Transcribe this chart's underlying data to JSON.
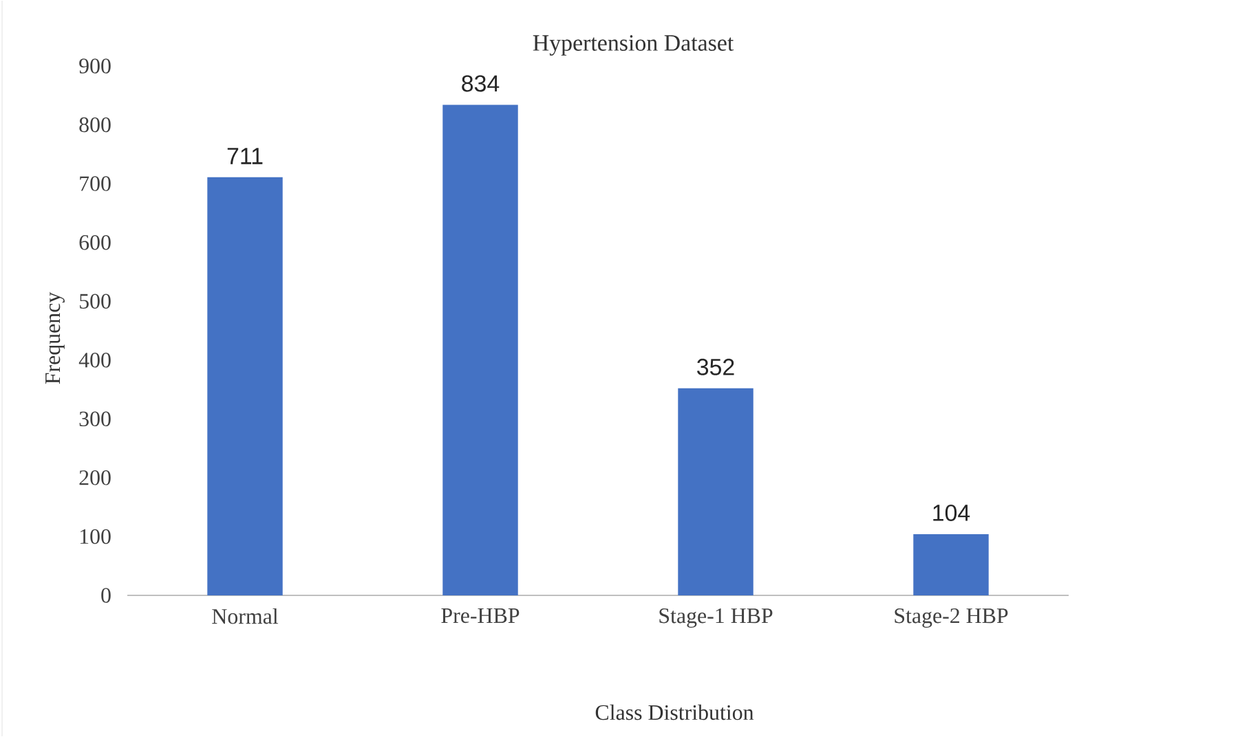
{
  "chart_data": {
    "type": "bar",
    "title": "Hypertension Dataset",
    "xlabel": "Class Distribution",
    "ylabel": "Frequency",
    "categories": [
      "Normal",
      "Pre-HBP",
      "Stage-1 HBP",
      "Stage-2 HBP"
    ],
    "values": [
      711,
      834,
      352,
      104
    ],
    "color": "#4472c4",
    "data_labels": true,
    "ylim": [
      0,
      900
    ],
    "yticks": [
      0,
      100,
      200,
      300,
      400,
      500,
      600,
      700,
      800,
      900
    ],
    "grid": false
  }
}
